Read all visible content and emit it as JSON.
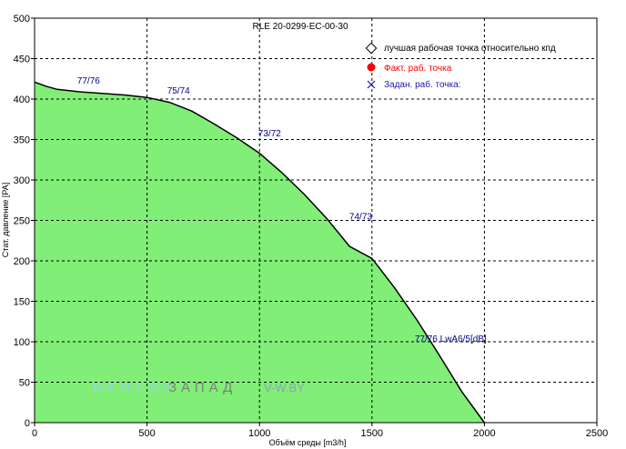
{
  "chart_data": {
    "type": "area",
    "title": "RLE 20-0299-EC-00-30",
    "xlabel": "Объём среды [m3/h]",
    "ylabel": "Стат. давление [PA]",
    "xlim": [
      0,
      2500
    ],
    "ylim": [
      0,
      500
    ],
    "x_ticks": [
      "0",
      "500",
      "1000",
      "1500",
      "2000",
      "2500"
    ],
    "y_ticks": [
      "0",
      "50",
      "100",
      "150",
      "200",
      "250",
      "300",
      "350",
      "400",
      "450",
      "500"
    ],
    "grid": true,
    "grid_style": "dashed",
    "plot_background": "#ffffff",
    "fill_color": "#80ee77",
    "curve_color": "#000000",
    "series": [
      {
        "x": [
          0,
          50,
          100,
          200,
          300,
          400,
          500,
          600,
          700,
          800,
          900,
          1000,
          1100,
          1200,
          1300,
          1400,
          1500,
          1600,
          1700,
          1800,
          1900,
          2000
        ],
        "y": [
          421,
          416,
          412,
          409,
          407,
          405,
          402,
          396,
          385,
          369,
          352,
          333,
          309,
          282,
          252,
          218,
          203,
          167,
          127,
          83,
          38,
          0
        ]
      }
    ],
    "annotations": [
      {
        "text": "77/76",
        "x": 240,
        "y": 419
      },
      {
        "text": "75/74",
        "x": 640,
        "y": 407
      },
      {
        "text": "73/72",
        "x": 1045,
        "y": 354
      },
      {
        "text": "74/73",
        "x": 1450,
        "y": 251
      },
      {
        "text": "77/76 LwA6/5[dB]",
        "x": 1850,
        "y": 100
      }
    ],
    "legend": {
      "position": "top-right",
      "items": [
        {
          "label": "лучшая рабочая точка относительно кпд",
          "marker": "open-diamond",
          "color": "#000000"
        },
        {
          "label": "Факт. раб. точка",
          "marker": "filled-circle",
          "color": "#ff0000"
        },
        {
          "label": "Задан. раб. точка:",
          "marker": "cross",
          "color": "#1a1aa6"
        }
      ]
    },
    "annotation_color": "#00008b",
    "watermark": {
      "part1": "ВЕНТЭЛ",
      "part2": "ЗАПАД",
      "part3": "V-W.BY",
      "color1": "#9bd1e0",
      "color2": "#7d7d7d",
      "color3": "#8aa2b8"
    }
  }
}
